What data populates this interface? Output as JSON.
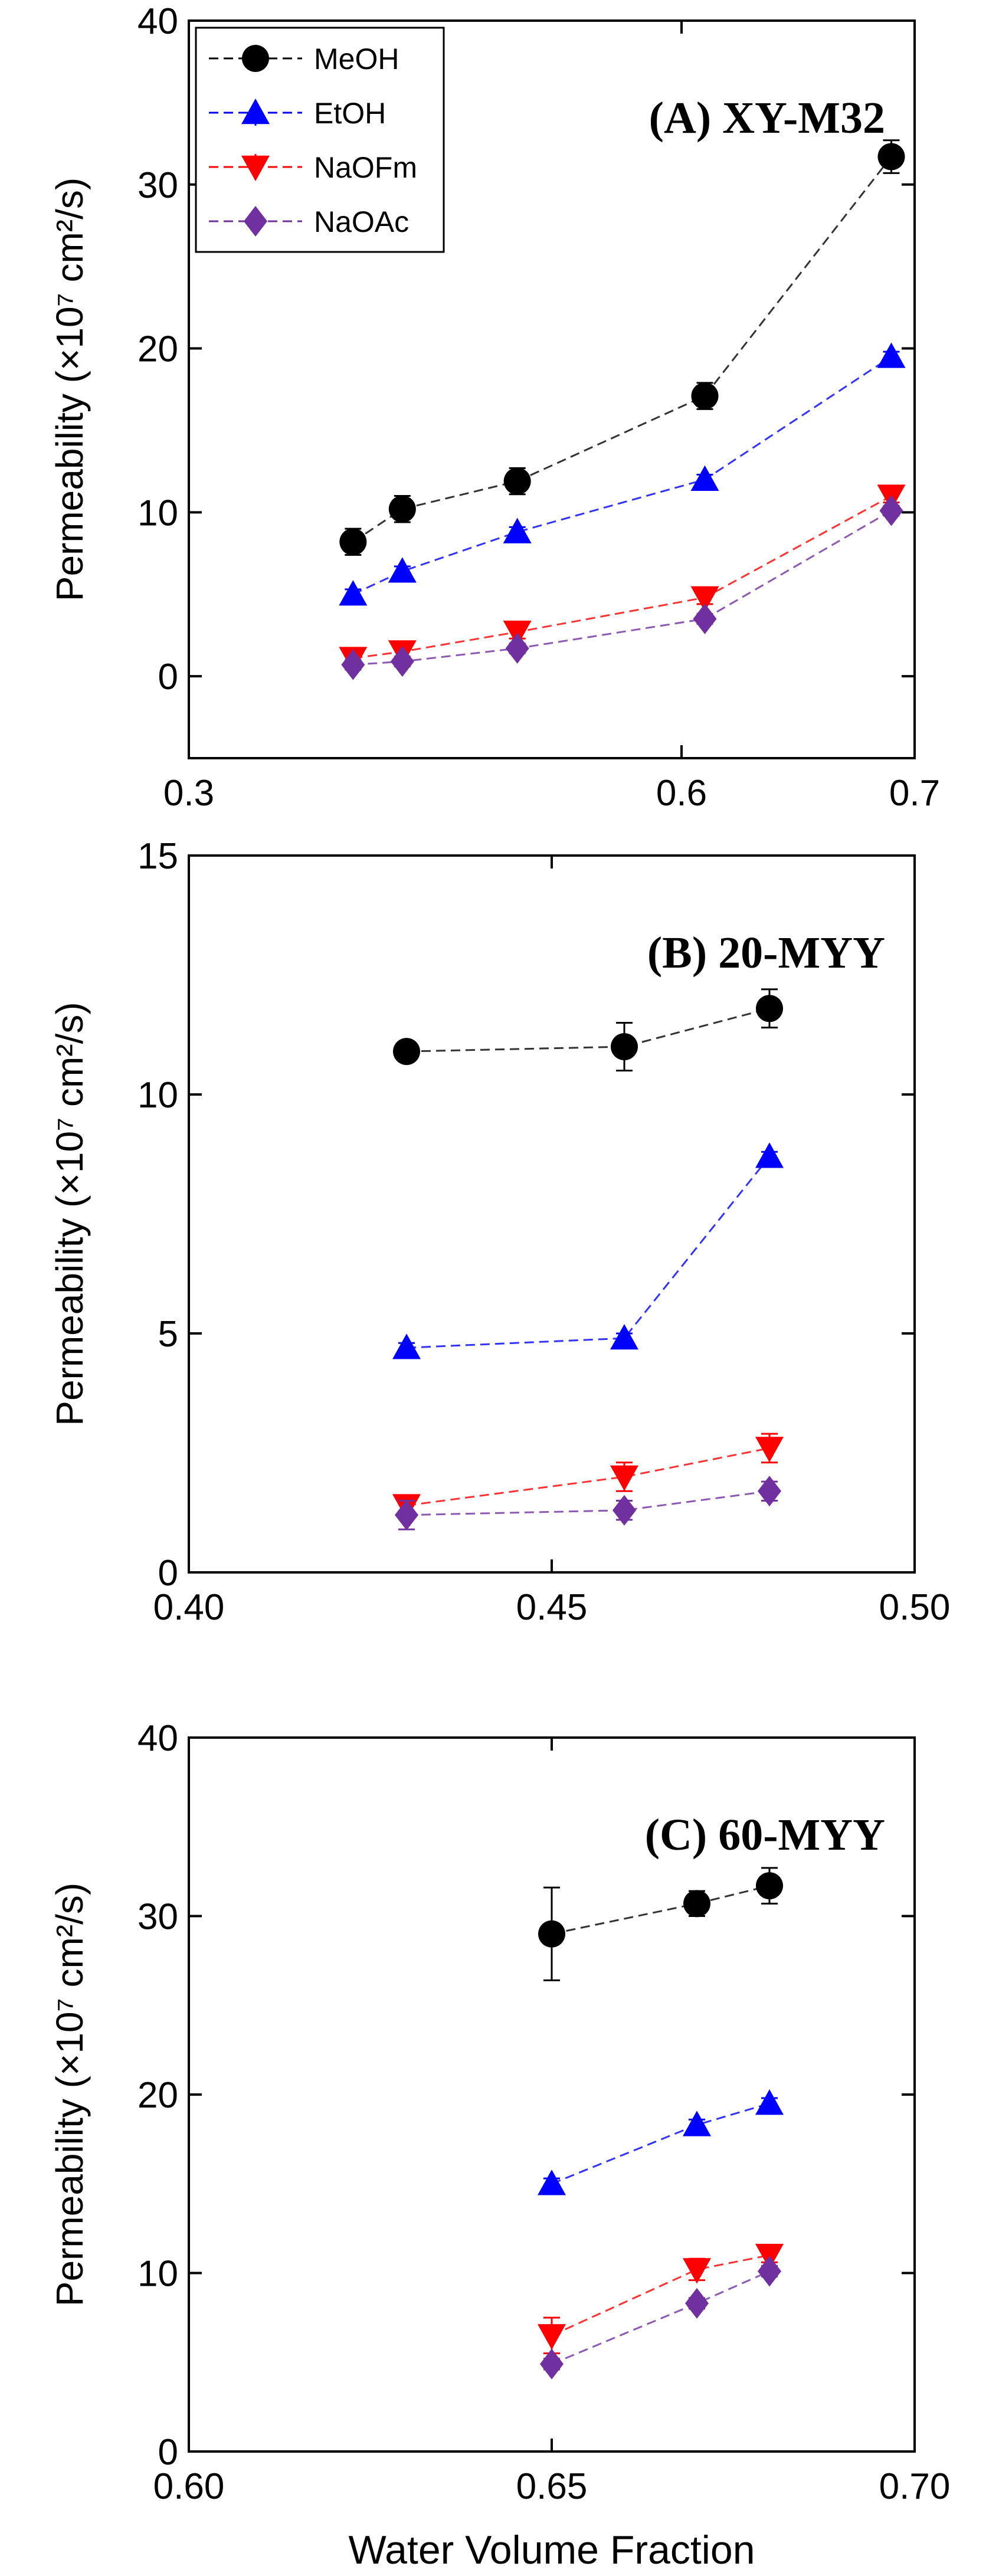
{
  "chart_data": [
    {
      "type": "line",
      "title": "(A) XY-M32",
      "xlabel": "",
      "ylabel": "Permeability (×10⁷ cm²/s)",
      "xlim": [
        0.3,
        0.7
      ],
      "ylim": [
        -5,
        40
      ],
      "xticks": [
        0.3,
        0.6,
        0.7
      ],
      "xtick_labels": [
        "0.3",
        "0.6",
        "0.7"
      ],
      "yticks": [
        0,
        10,
        20,
        30,
        40
      ],
      "ytick_labels": [
        "0",
        "10",
        "20",
        "30",
        "40"
      ],
      "legend": "top-left",
      "x": [
        0.4,
        0.43,
        0.5,
        0.61,
        0.69
      ],
      "series": [
        {
          "name": "MeOH",
          "color": "#000000",
          "marker": "circle",
          "values": [
            8.2,
            10.2,
            11.9,
            17.1,
            31.7
          ],
          "err": [
            0.8,
            0.8,
            0.8,
            0.8,
            1.0
          ]
        },
        {
          "name": "EtOH",
          "color": "#0000ff",
          "marker": "triangle-up",
          "values": [
            5.0,
            6.4,
            8.8,
            12.0,
            19.5
          ],
          "err": [
            0.3,
            0.3,
            0.3,
            0.3,
            0.3
          ]
        },
        {
          "name": "NaOFm",
          "color": "#ff0000",
          "marker": "triangle-down",
          "values": [
            1.1,
            1.5,
            2.7,
            4.8,
            11.0
          ],
          "err": [
            0.4,
            0.4,
            0.4,
            0.4,
            0.4
          ]
        },
        {
          "name": "NaOAc",
          "color": "#7030a0",
          "marker": "diamond",
          "values": [
            0.7,
            0.9,
            1.7,
            3.5,
            10.1
          ],
          "err": [
            0.3,
            0.3,
            0.3,
            0.3,
            0.3
          ]
        }
      ]
    },
    {
      "type": "line",
      "title": "(B) 20-MYY",
      "xlabel": "",
      "ylabel": "Permeability (×10⁷ cm²/s)",
      "xlim": [
        0.4,
        0.5
      ],
      "ylim": [
        0,
        15
      ],
      "xticks": [
        0.4,
        0.45,
        0.5
      ],
      "xtick_labels": [
        "0.40",
        "0.45",
        "0.50"
      ],
      "yticks": [
        0,
        5,
        10,
        15
      ],
      "ytick_labels": [
        "0",
        "5",
        "10",
        "15"
      ],
      "x": [
        0.43,
        0.46,
        0.48
      ],
      "series": [
        {
          "name": "MeOH",
          "color": "#000000",
          "marker": "circle",
          "values": [
            10.9,
            11.0,
            11.8
          ],
          "err": [
            0.2,
            0.5,
            0.4
          ]
        },
        {
          "name": "EtOH",
          "color": "#0000ff",
          "marker": "triangle-up",
          "values": [
            4.7,
            4.9,
            8.7
          ],
          "err": [
            0.1,
            0.1,
            0.1
          ]
        },
        {
          "name": "NaOFm",
          "color": "#ff0000",
          "marker": "triangle-down",
          "values": [
            1.4,
            2.0,
            2.6
          ],
          "err": [
            0.2,
            0.3,
            0.3
          ]
        },
        {
          "name": "NaOAc",
          "color": "#7030a0",
          "marker": "diamond",
          "values": [
            1.2,
            1.3,
            1.7
          ],
          "err": [
            0.3,
            0.2,
            0.2
          ]
        }
      ]
    },
    {
      "type": "line",
      "title": "(C) 60-MYY",
      "xlabel": "Water Volume Fraction",
      "ylabel": "Permeability (×10⁷ cm²/s)",
      "xlim": [
        0.6,
        0.7
      ],
      "ylim": [
        0,
        40
      ],
      "xticks": [
        0.6,
        0.65,
        0.7
      ],
      "xtick_labels": [
        "0.60",
        "0.65",
        "0.70"
      ],
      "yticks": [
        0,
        10,
        20,
        30,
        40
      ],
      "ytick_labels": [
        "0",
        "10",
        "20",
        "30",
        "40"
      ],
      "x": [
        0.65,
        0.67,
        0.68
      ],
      "series": [
        {
          "name": "MeOH",
          "color": "#000000",
          "marker": "circle",
          "values": [
            29.0,
            30.7,
            31.7
          ],
          "err": [
            2.6,
            0.7,
            1.0
          ]
        },
        {
          "name": "EtOH",
          "color": "#0000ff",
          "marker": "triangle-up",
          "values": [
            15.0,
            18.3,
            19.5
          ],
          "err": [
            0.3,
            0.3,
            0.3
          ]
        },
        {
          "name": "NaOFm",
          "color": "#ff0000",
          "marker": "triangle-down",
          "values": [
            6.5,
            10.2,
            11.0
          ],
          "err": [
            1.0,
            0.6,
            0.4
          ]
        },
        {
          "name": "NaOAc",
          "color": "#7030a0",
          "marker": "diamond",
          "values": [
            4.9,
            8.3,
            10.1
          ],
          "err": [
            0.3,
            0.3,
            0.3
          ]
        }
      ]
    }
  ]
}
